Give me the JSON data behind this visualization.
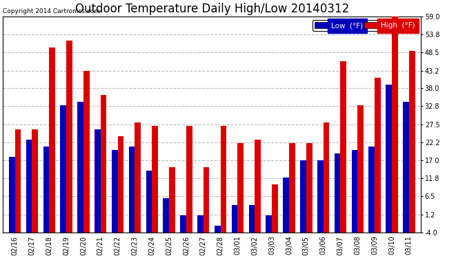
{
  "title": "Outdoor Temperature Daily High/Low 20140312",
  "copyright": "Copyright 2014 Cartronics.com",
  "dates": [
    "02/16",
    "02/17",
    "02/18",
    "02/19",
    "02/20",
    "02/21",
    "02/22",
    "02/23",
    "02/24",
    "02/25",
    "02/26",
    "02/27",
    "02/28",
    "03/01",
    "03/02",
    "03/03",
    "03/04",
    "03/05",
    "03/06",
    "03/07",
    "03/08",
    "03/09",
    "03/10",
    "03/11"
  ],
  "low": [
    18,
    23,
    21,
    33,
    34,
    26,
    20,
    21,
    14,
    6,
    1,
    1,
    -2,
    4,
    4,
    1,
    12,
    17,
    17,
    19,
    20,
    21,
    39,
    34
  ],
  "high": [
    26,
    26,
    50,
    52,
    43,
    36,
    24,
    28,
    27,
    15,
    27,
    15,
    27,
    22,
    23,
    10,
    22,
    22,
    28,
    46,
    33,
    41,
    60,
    49
  ],
  "ylim_min": -4.0,
  "ylim_max": 59.0,
  "yticks": [
    -4.0,
    1.2,
    6.5,
    11.8,
    17.0,
    22.2,
    27.5,
    32.8,
    38.0,
    43.2,
    48.5,
    53.8,
    59.0
  ],
  "low_color": "#0000bb",
  "high_color": "#dd0000",
  "bg_color": "#ffffff",
  "grid_color": "#bbbbbb",
  "bar_width": 0.35,
  "title_fontsize": 12,
  "tick_fontsize": 7,
  "legend_low_label": "Low  (°F)",
  "legend_high_label": "High  (°F)"
}
